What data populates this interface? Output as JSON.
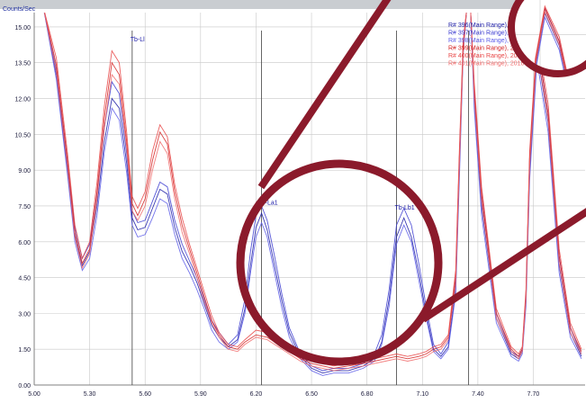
{
  "chart_data": {
    "type": "line",
    "ylabel": "Counts/Sec",
    "xlim": [
      5.0,
      7.98
    ],
    "ylim": [
      0.0,
      15.6
    ],
    "x_ticks": [
      "5.00",
      "5.30",
      "5.60",
      "5.90",
      "6.20",
      "6.50",
      "6.80",
      "7.10",
      "7.40",
      "7.70"
    ],
    "y_ticks": [
      "0.00",
      "1.50",
      "3.00",
      "4.50",
      "6.00",
      "7.50",
      "9.00",
      "10.50",
      "12.00",
      "13.50",
      "15.00"
    ],
    "grid": true,
    "legend_position": "top-right",
    "peak_labels": [
      {
        "text": "Tb-Ll",
        "x": 5.52,
        "y": 14.4
      },
      {
        "text": "Tb-La1",
        "x": 6.21,
        "y": 7.55
      },
      {
        "text": "Tb-Lb1",
        "x": 6.95,
        "y": 7.35
      }
    ],
    "peak_markers": [
      5.53,
      6.23,
      6.96,
      7.35
    ],
    "series": [
      {
        "name": "R# 396(Main Range), 2018-03-09 15:09",
        "color": "#1a1aa6",
        "x": [
          5.0,
          5.05,
          5.12,
          5.18,
          5.22,
          5.26,
          5.3,
          5.34,
          5.38,
          5.42,
          5.46,
          5.5,
          5.53,
          5.56,
          5.6,
          5.64,
          5.68,
          5.72,
          5.76,
          5.8,
          5.84,
          5.88,
          5.92,
          5.96,
          6.0,
          6.05,
          6.1,
          6.14,
          6.17,
          6.2,
          6.23,
          6.26,
          6.3,
          6.34,
          6.38,
          6.44,
          6.5,
          6.56,
          6.62,
          6.7,
          6.78,
          6.84,
          6.88,
          6.92,
          6.96,
          7.0,
          7.04,
          7.08,
          7.12,
          7.16,
          7.2,
          7.24,
          7.28,
          7.3,
          7.32,
          7.34,
          7.36,
          7.38,
          7.42,
          7.5,
          7.58,
          7.62,
          7.64,
          7.66,
          7.68,
          7.72,
          7.78,
          7.84,
          7.9,
          7.96
        ],
        "y": [
          15.8,
          15.8,
          13.0,
          9.0,
          6.3,
          5.0,
          5.6,
          7.5,
          10.2,
          12.0,
          11.6,
          9.3,
          7.0,
          6.5,
          6.6,
          7.4,
          8.2,
          8.0,
          6.6,
          5.6,
          5.0,
          4.3,
          3.4,
          2.5,
          2.0,
          1.6,
          1.9,
          3.2,
          5.0,
          6.6,
          7.2,
          6.5,
          5.0,
          3.5,
          2.2,
          1.2,
          0.7,
          0.5,
          0.6,
          0.6,
          0.8,
          1.1,
          1.8,
          3.6,
          6.2,
          7.0,
          6.2,
          4.7,
          3.0,
          1.5,
          1.2,
          1.6,
          4.0,
          9.0,
          14.0,
          15.8,
          15.8,
          12.0,
          7.5,
          2.8,
          1.3,
          1.1,
          1.4,
          3.5,
          9.0,
          14.0,
          11.0,
          5.0,
          2.2,
          1.2
        ]
      },
      {
        "name": "R# 397(Main Range), 2018-03-09 15:09",
        "color": "#3a3ad0",
        "x": [
          5.0,
          5.05,
          5.12,
          5.18,
          5.22,
          5.26,
          5.3,
          5.34,
          5.38,
          5.42,
          5.46,
          5.5,
          5.53,
          5.56,
          5.6,
          5.64,
          5.68,
          5.72,
          5.76,
          5.8,
          5.84,
          5.88,
          5.92,
          5.96,
          6.0,
          6.05,
          6.1,
          6.14,
          6.17,
          6.2,
          6.23,
          6.26,
          6.3,
          6.34,
          6.38,
          6.44,
          6.5,
          6.56,
          6.62,
          6.7,
          6.78,
          6.84,
          6.88,
          6.92,
          6.96,
          7.0,
          7.04,
          7.08,
          7.12,
          7.16,
          7.2,
          7.24,
          7.28,
          7.3,
          7.32,
          7.34,
          7.36,
          7.38,
          7.42,
          7.5,
          7.58,
          7.62,
          7.64,
          7.66,
          7.68,
          7.72,
          7.78,
          7.84,
          7.9,
          7.96
        ],
        "y": [
          15.8,
          15.8,
          13.2,
          9.3,
          6.6,
          5.3,
          5.9,
          8.0,
          10.8,
          12.7,
          12.2,
          9.7,
          7.3,
          6.8,
          6.9,
          7.7,
          8.5,
          8.3,
          6.9,
          5.9,
          5.2,
          4.5,
          3.6,
          2.7,
          2.2,
          1.7,
          2.1,
          3.6,
          5.6,
          7.1,
          7.5,
          6.9,
          5.4,
          3.8,
          2.4,
          1.3,
          0.8,
          0.6,
          0.7,
          0.7,
          0.9,
          1.3,
          2.1,
          4.0,
          6.7,
          7.4,
          6.7,
          5.1,
          3.3,
          1.7,
          1.3,
          1.8,
          4.5,
          9.5,
          14.2,
          15.8,
          15.8,
          12.4,
          8.0,
          3.0,
          1.4,
          1.2,
          1.5,
          3.8,
          9.5,
          14.4,
          11.4,
          5.4,
          2.4,
          1.3
        ]
      },
      {
        "name": "R# 398(Main Range), 2018-03-09 15:09",
        "color": "#5a5ae8",
        "x": [
          5.0,
          5.05,
          5.12,
          5.18,
          5.22,
          5.26,
          5.3,
          5.34,
          5.38,
          5.42,
          5.46,
          5.5,
          5.53,
          5.56,
          5.6,
          5.64,
          5.68,
          5.72,
          5.76,
          5.8,
          5.84,
          5.88,
          5.92,
          5.96,
          6.0,
          6.05,
          6.1,
          6.14,
          6.17,
          6.2,
          6.23,
          6.26,
          6.3,
          6.34,
          6.38,
          6.44,
          6.5,
          6.56,
          6.62,
          6.7,
          6.78,
          6.84,
          6.88,
          6.92,
          6.96,
          7.0,
          7.04,
          7.08,
          7.12,
          7.16,
          7.2,
          7.24,
          7.28,
          7.3,
          7.32,
          7.34,
          7.36,
          7.38,
          7.42,
          7.5,
          7.58,
          7.62,
          7.64,
          7.66,
          7.68,
          7.72,
          7.78,
          7.84,
          7.9,
          7.96
        ],
        "y": [
          15.8,
          15.8,
          12.8,
          8.8,
          6.0,
          4.8,
          5.3,
          7.1,
          9.8,
          11.6,
          11.1,
          8.9,
          6.7,
          6.2,
          6.3,
          7.0,
          7.8,
          7.6,
          6.3,
          5.3,
          4.7,
          4.0,
          3.2,
          2.3,
          1.8,
          1.5,
          1.8,
          3.0,
          4.7,
          6.2,
          6.8,
          6.2,
          4.7,
          3.2,
          2.0,
          1.1,
          0.6,
          0.4,
          0.5,
          0.5,
          0.7,
          1.0,
          1.7,
          3.3,
          5.9,
          6.7,
          6.0,
          4.4,
          2.8,
          1.4,
          1.1,
          1.5,
          3.8,
          8.6,
          13.8,
          15.8,
          15.8,
          11.6,
          7.1,
          2.6,
          1.2,
          1.0,
          1.3,
          3.3,
          8.6,
          13.6,
          10.6,
          4.7,
          2.0,
          1.1
        ]
      },
      {
        "name": "R# 399(Main Range), 2018-03-09 15:09",
        "color": "#d42020",
        "x": [
          5.0,
          5.05,
          5.12,
          5.18,
          5.22,
          5.26,
          5.3,
          5.34,
          5.38,
          5.42,
          5.46,
          5.5,
          5.53,
          5.56,
          5.6,
          5.64,
          5.68,
          5.72,
          5.76,
          5.8,
          5.84,
          5.88,
          5.92,
          5.96,
          6.0,
          6.05,
          6.1,
          6.14,
          6.2,
          6.26,
          6.32,
          6.38,
          6.44,
          6.5,
          6.56,
          6.62,
          6.7,
          6.78,
          6.84,
          6.9,
          6.96,
          7.02,
          7.08,
          7.12,
          7.16,
          7.2,
          7.24,
          7.28,
          7.3,
          7.32,
          7.34,
          7.36,
          7.38,
          7.42,
          7.5,
          7.58,
          7.62,
          7.64,
          7.66,
          7.68,
          7.72,
          7.78,
          7.84,
          7.9,
          7.96
        ],
        "y": [
          15.8,
          15.8,
          13.4,
          9.4,
          6.4,
          5.1,
          5.7,
          8.1,
          11.2,
          13.5,
          13.0,
          10.2,
          7.6,
          7.1,
          7.8,
          9.4,
          10.6,
          10.1,
          8.1,
          6.7,
          5.7,
          4.7,
          3.7,
          2.7,
          2.1,
          1.6,
          1.5,
          1.8,
          2.1,
          2.0,
          1.7,
          1.4,
          1.1,
          0.9,
          0.8,
          0.7,
          0.8,
          0.9,
          1.0,
          1.1,
          1.2,
          1.1,
          1.2,
          1.3,
          1.5,
          1.6,
          2.0,
          4.5,
          9.5,
          14.2,
          15.8,
          15.8,
          12.4,
          8.0,
          3.0,
          1.5,
          1.2,
          1.5,
          3.8,
          9.5,
          14.4,
          11.4,
          5.4,
          2.4,
          1.4
        ]
      },
      {
        "name": "R# 400(Main Range), 2018-03-09 15:09",
        "color": "#e84444",
        "x": [
          5.0,
          5.05,
          5.12,
          5.18,
          5.22,
          5.26,
          5.3,
          5.34,
          5.38,
          5.42,
          5.46,
          5.5,
          5.53,
          5.56,
          5.6,
          5.64,
          5.68,
          5.72,
          5.76,
          5.8,
          5.84,
          5.88,
          5.92,
          5.96,
          6.0,
          6.05,
          6.1,
          6.14,
          6.2,
          6.26,
          6.32,
          6.38,
          6.44,
          6.5,
          6.56,
          6.62,
          6.7,
          6.78,
          6.84,
          6.9,
          6.96,
          7.02,
          7.08,
          7.12,
          7.16,
          7.2,
          7.24,
          7.28,
          7.3,
          7.32,
          7.34,
          7.36,
          7.38,
          7.42,
          7.5,
          7.58,
          7.62,
          7.64,
          7.66,
          7.68,
          7.72,
          7.78,
          7.84,
          7.9,
          7.96
        ],
        "y": [
          15.8,
          15.8,
          13.7,
          9.7,
          6.7,
          5.3,
          6.0,
          8.5,
          11.7,
          14.0,
          13.5,
          10.6,
          7.9,
          7.4,
          8.1,
          9.8,
          10.9,
          10.4,
          8.4,
          7.0,
          5.9,
          4.9,
          3.9,
          2.9,
          2.2,
          1.7,
          1.6,
          1.9,
          2.3,
          2.2,
          1.9,
          1.5,
          1.2,
          1.0,
          0.9,
          0.8,
          0.9,
          1.0,
          1.1,
          1.2,
          1.3,
          1.2,
          1.3,
          1.4,
          1.6,
          1.7,
          2.1,
          4.8,
          9.8,
          14.4,
          15.8,
          15.8,
          12.7,
          8.3,
          3.2,
          1.6,
          1.3,
          1.6,
          4.0,
          9.8,
          14.6,
          11.8,
          5.7,
          2.6,
          1.5
        ]
      },
      {
        "name": "R# 401(Main Range), 2018-03-09 15:09",
        "color": "#f06a6a",
        "x": [
          5.0,
          5.05,
          5.12,
          5.18,
          5.22,
          5.26,
          5.3,
          5.34,
          5.38,
          5.42,
          5.46,
          5.5,
          5.53,
          5.56,
          5.6,
          5.64,
          5.68,
          5.72,
          5.76,
          5.8,
          5.84,
          5.88,
          5.92,
          5.96,
          6.0,
          6.05,
          6.1,
          6.14,
          6.2,
          6.26,
          6.32,
          6.38,
          6.44,
          6.5,
          6.56,
          6.62,
          6.7,
          6.78,
          6.84,
          6.9,
          6.96,
          7.02,
          7.08,
          7.12,
          7.16,
          7.2,
          7.24,
          7.28,
          7.3,
          7.32,
          7.34,
          7.36,
          7.38,
          7.42,
          7.5,
          7.58,
          7.62,
          7.64,
          7.66,
          7.68,
          7.72,
          7.78,
          7.84,
          7.9,
          7.96
        ],
        "y": [
          15.8,
          15.8,
          13.1,
          9.1,
          6.2,
          4.9,
          5.5,
          7.8,
          10.8,
          13.0,
          12.6,
          9.9,
          7.3,
          6.9,
          7.5,
          9.0,
          10.2,
          9.7,
          7.8,
          6.4,
          5.5,
          4.5,
          3.5,
          2.6,
          2.0,
          1.5,
          1.4,
          1.7,
          2.0,
          1.9,
          1.6,
          1.3,
          1.0,
          0.8,
          0.7,
          0.6,
          0.7,
          0.8,
          0.9,
          1.0,
          1.1,
          1.0,
          1.1,
          1.2,
          1.4,
          1.5,
          1.9,
          4.2,
          9.2,
          13.9,
          15.8,
          15.8,
          12.1,
          7.7,
          2.8,
          1.4,
          1.1,
          1.4,
          3.6,
          9.2,
          14.1,
          11.1,
          5.1,
          2.2,
          1.3
        ]
      }
    ]
  },
  "colors": {
    "highlight_ring": "#8b1a2b",
    "plot_background": "#ffffff",
    "grid": "#c8c8c8"
  }
}
